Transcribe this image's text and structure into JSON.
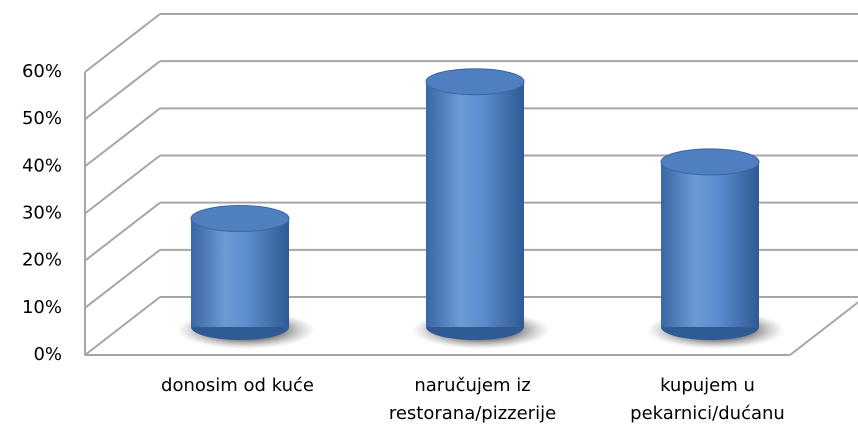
{
  "chart_data": {
    "type": "bar3d",
    "categories": [
      "donosim od kuće",
      "naručujem iz restorana/pizzerije",
      "kupujem u pekarnici/dućanu"
    ],
    "values": [
      23,
      52,
      35
    ],
    "color": "#4f81bd",
    "ylim": [
      0,
      60
    ],
    "yticks": [
      {
        "value": 0,
        "label": "0%"
      },
      {
        "value": 10,
        "label": "10%"
      },
      {
        "value": 20,
        "label": "20%"
      },
      {
        "value": 30,
        "label": "30%"
      },
      {
        "value": 40,
        "label": "40%"
      },
      {
        "value": 50,
        "label": "50%"
      },
      {
        "value": 60,
        "label": "60%"
      }
    ],
    "grid": true
  }
}
